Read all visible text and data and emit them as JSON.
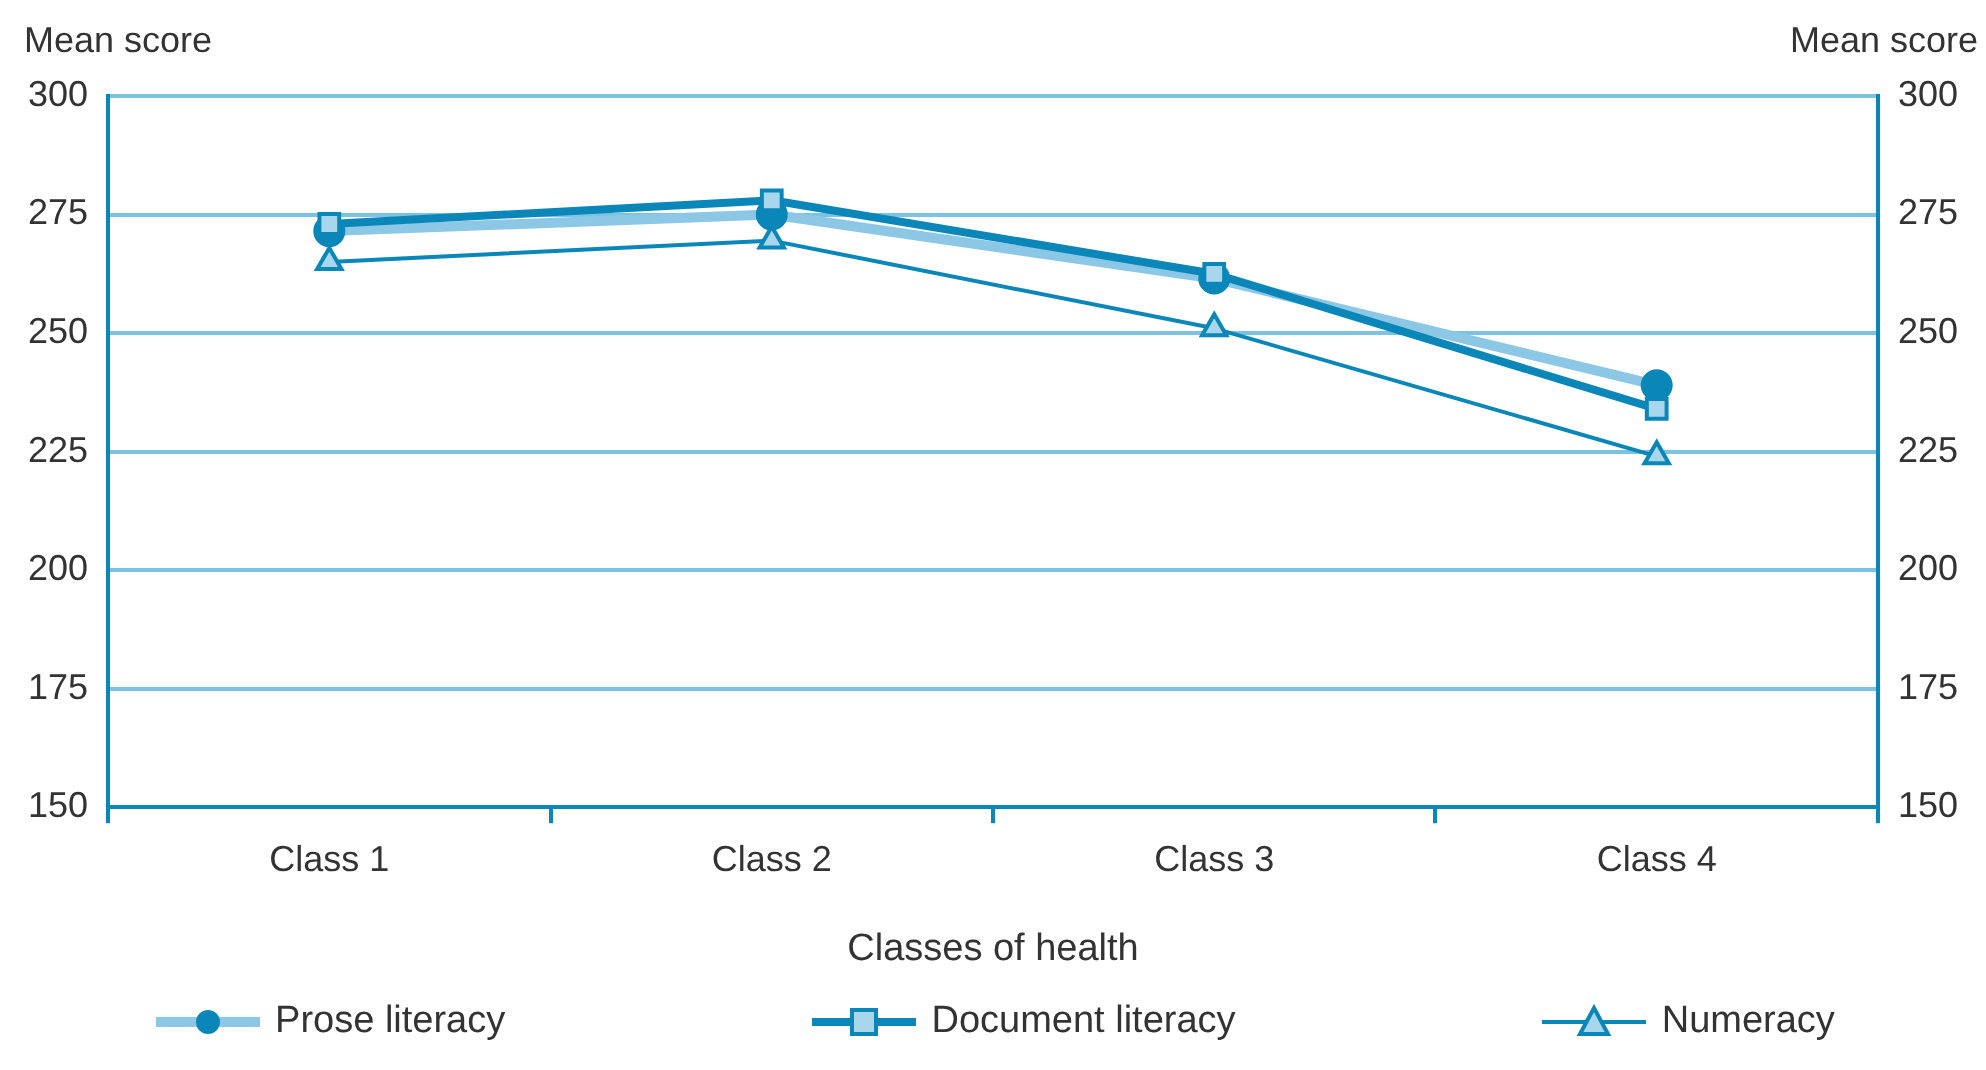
{
  "chart_data": {
    "type": "line",
    "xlabel": "Classes of health",
    "ylabel": "Mean score",
    "y2label": "Mean score",
    "categories": [
      "Class 1",
      "Class 2",
      "Class 3",
      "Class 4"
    ],
    "series": [
      {
        "name": "Prose literacy",
        "color": "#8cc8e6",
        "marker": "circle",
        "values": [
          271.5,
          275,
          261.5,
          239
        ]
      },
      {
        "name": "Document literacy",
        "color": "#0a87b8",
        "marker": "square",
        "values": [
          273,
          278,
          262.5,
          234
        ]
      },
      {
        "name": "Numeracy",
        "color": "#0a87b8",
        "marker": "triangle",
        "values": [
          265,
          269.5,
          251,
          224
        ]
      }
    ],
    "ylim": [
      150,
      300
    ],
    "yticks": [
      150,
      175,
      200,
      225,
      250,
      275,
      300
    ],
    "y2lim": [
      150,
      300
    ],
    "y2ticks": [
      150,
      175,
      200,
      225,
      250,
      275,
      300
    ],
    "grid": "y",
    "legend": "bottom"
  }
}
